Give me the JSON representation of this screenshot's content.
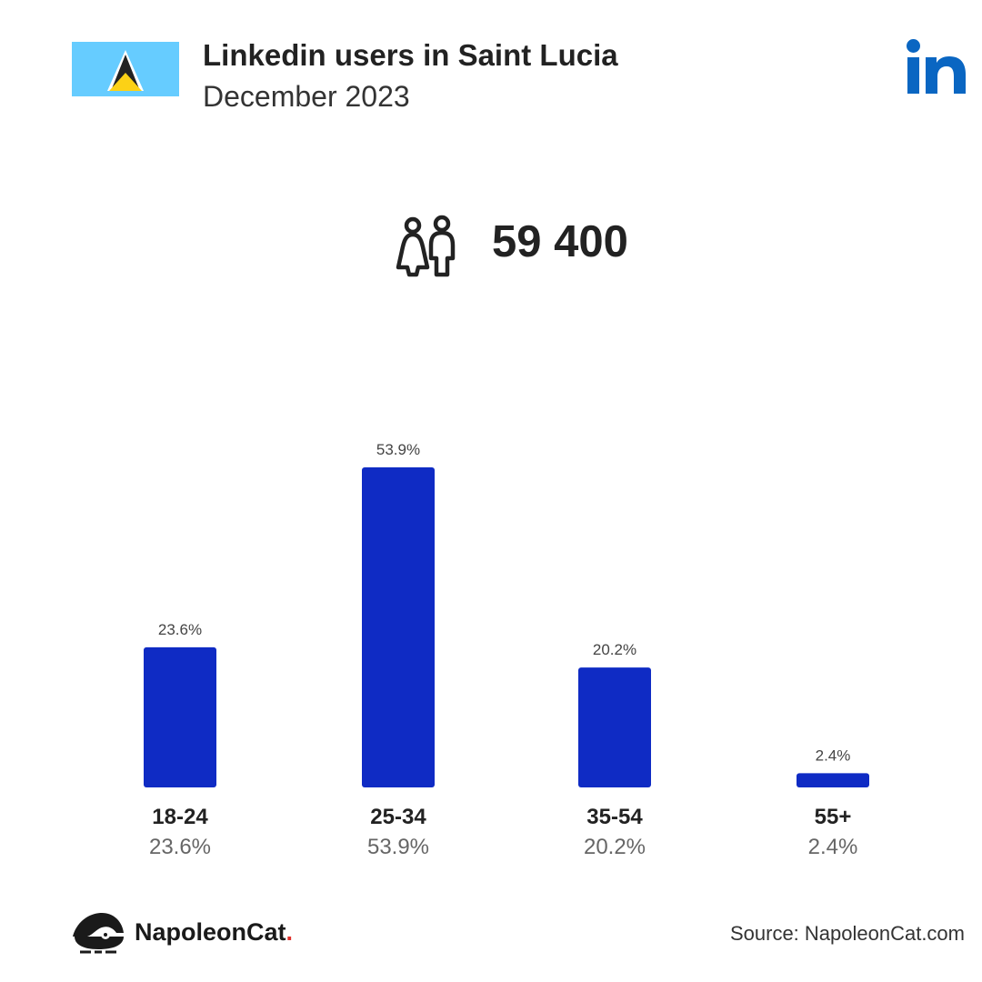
{
  "header": {
    "title": "Linkedin users in Saint Lucia",
    "subtitle": "December 2023"
  },
  "total_users": "59 400",
  "colors": {
    "bar": "#0f2bc4",
    "flag_blue": "#66ccff",
    "linkedin_blue": "#0a66c2"
  },
  "icons": {
    "flag": "saint-lucia-flag-icon",
    "brand": "linkedin-logo-icon",
    "users": "people-icon",
    "footer": "napoleoncat-logo-icon"
  },
  "chart_data": {
    "type": "bar",
    "categories": [
      "18-24",
      "25-34",
      "35-54",
      "55+"
    ],
    "values": [
      23.6,
      53.9,
      20.2,
      2.4
    ],
    "value_labels": [
      "23.6%",
      "53.9%",
      "20.2%",
      "2.4%"
    ],
    "unit": "%",
    "ylim": [
      0,
      53.9
    ],
    "grid": false
  },
  "footer": {
    "brand": "NapoleonCat",
    "brand_dot": ".",
    "source": "Source: NapoleonCat.com"
  }
}
